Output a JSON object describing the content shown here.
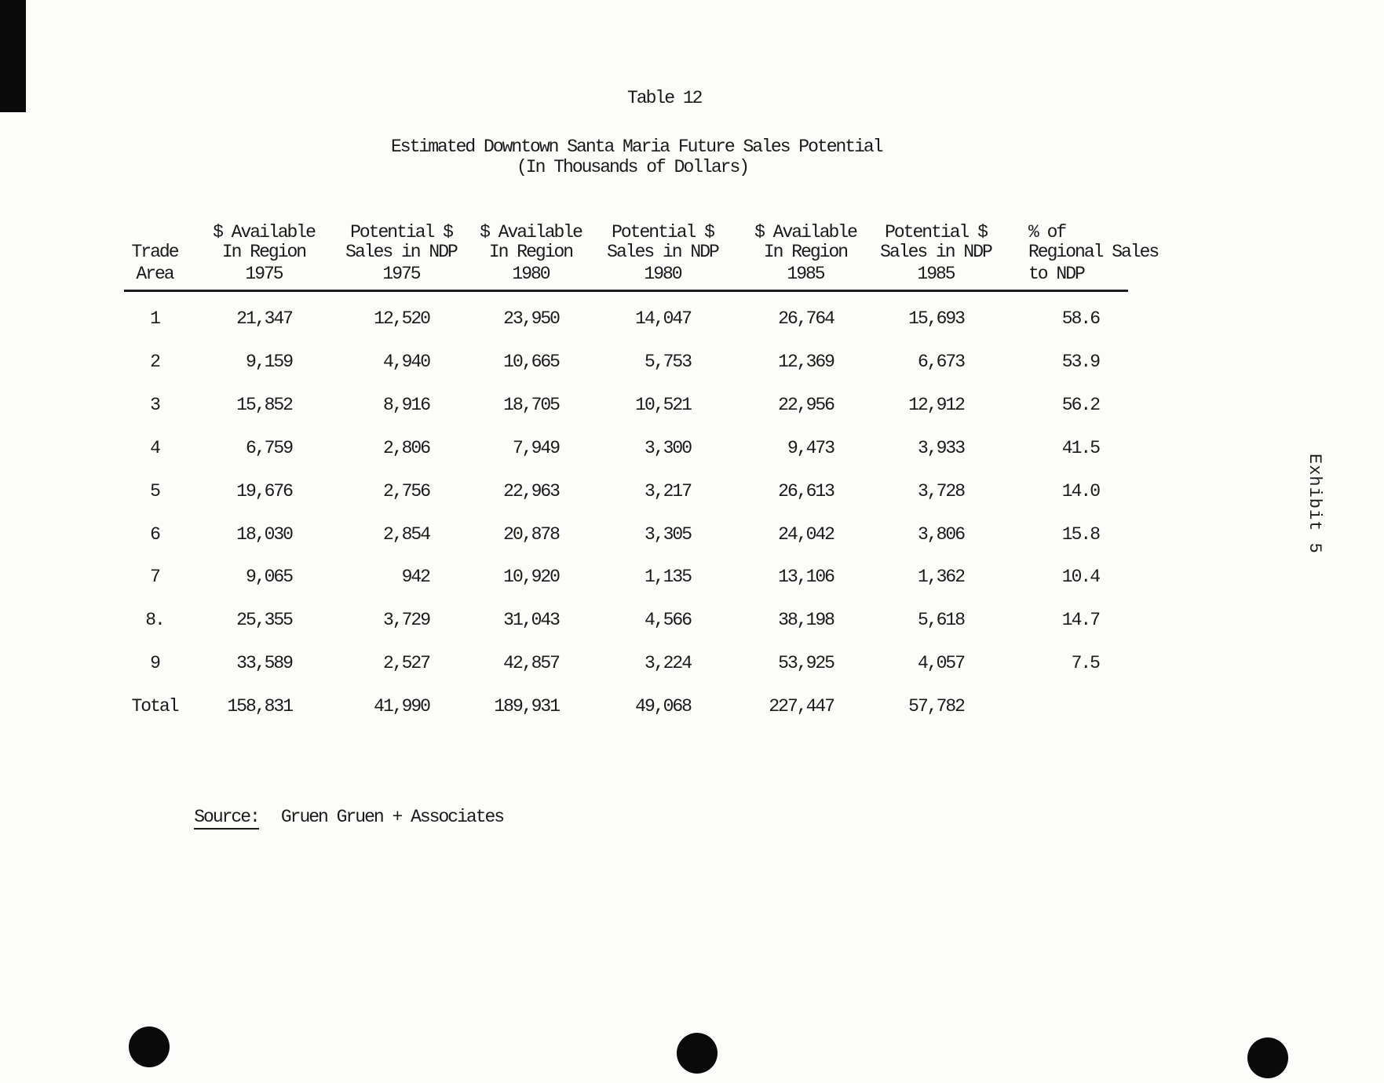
{
  "document": {
    "table_label": "Table 12",
    "title": "Estimated Downtown Santa Maria Future Sales Potential",
    "subtitle": "(In Thousands of Dollars)",
    "source_label": "Source:",
    "source_value": "Gruen Gruen + Associates",
    "exhibit_label": "Exhibit 5",
    "colors": {
      "ink": "#1a1a1a",
      "paper": "#fcfcfa"
    }
  },
  "table": {
    "columns": [
      {
        "lines": [
          "",
          "Trade",
          "Area"
        ]
      },
      {
        "lines": [
          "$ Available",
          "In Region",
          "1975"
        ]
      },
      {
        "lines": [
          "Potential $",
          "Sales in NDP",
          "1975"
        ]
      },
      {
        "lines": [
          "$ Available",
          "In Region",
          "1980"
        ]
      },
      {
        "lines": [
          "Potential $",
          "Sales in NDP",
          "1980"
        ]
      },
      {
        "lines": [
          "$ Available",
          "In Region",
          "1985"
        ]
      },
      {
        "lines": [
          "Potential $",
          "Sales in NDP",
          "1985"
        ]
      },
      {
        "lines": [
          "% of",
          "Regional Sales",
          "to NDP"
        ]
      }
    ],
    "rows": [
      [
        "1",
        "21,347",
        "12,520",
        "23,950",
        "14,047",
        "26,764",
        "15,693",
        "58.6"
      ],
      [
        "2",
        "9,159",
        "4,940",
        "10,665",
        "5,753",
        "12,369",
        "6,673",
        "53.9"
      ],
      [
        "3",
        "15,852",
        "8,916",
        "18,705",
        "10,521",
        "22,956",
        "12,912",
        "56.2"
      ],
      [
        "4",
        "6,759",
        "2,806",
        "7,949",
        "3,300",
        "9,473",
        "3,933",
        "41.5"
      ],
      [
        "5",
        "19,676",
        "2,756",
        "22,963",
        "3,217",
        "26,613",
        "3,728",
        "14.0"
      ],
      [
        "6",
        "18,030",
        "2,854",
        "20,878",
        "3,305",
        "24,042",
        "3,806",
        "15.8"
      ],
      [
        "7",
        "9,065",
        "942",
        "10,920",
        "1,135",
        "13,106",
        "1,362",
        "10.4"
      ],
      [
        "8.",
        "25,355",
        "3,729",
        "31,043",
        "4,566",
        "38,198",
        "5,618",
        "14.7"
      ],
      [
        "9",
        "33,589",
        "2,527",
        "42,857",
        "3,224",
        "53,925",
        "4,057",
        "7.5"
      ],
      [
        "Total",
        "158,831",
        "41,990",
        "189,931",
        "49,068",
        "227,447",
        "57,782",
        ""
      ]
    ]
  }
}
